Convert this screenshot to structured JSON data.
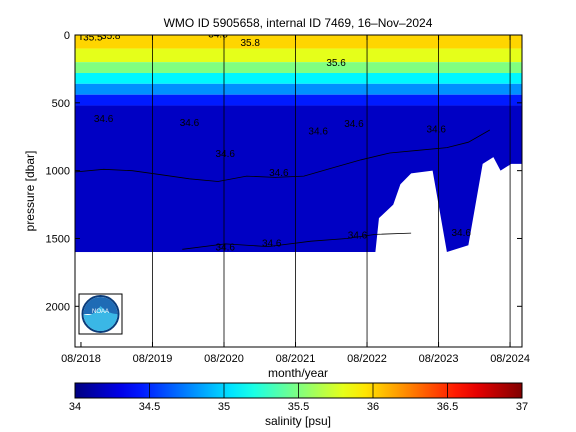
{
  "chart_data": {
    "type": "heatmap",
    "title": "WMO ID 5905658, internal ID 7469, 16–Nov–2024",
    "xlabel": "month/year",
    "ylabel": "pressure [dbar]",
    "x_ticks": [
      "08/2018",
      "08/2019",
      "08/2020",
      "08/2021",
      "08/2022",
      "08/2023",
      "08/2024"
    ],
    "x_range_years": [
      2018.5,
      2024.75
    ],
    "y_ticks": [
      0,
      500,
      1000,
      1500,
      2000
    ],
    "y_range": [
      0,
      2300
    ],
    "y_reversed": true,
    "colorbar": {
      "label": "salinity [psu]",
      "ticks": [
        34,
        34.5,
        35,
        35.5,
        36,
        36.5,
        37
      ],
      "range": [
        34,
        37
      ],
      "colormap": "jet"
    },
    "layers": [
      {
        "pmin": 0,
        "pmax": 100,
        "salinity": 36.0
      },
      {
        "pmin": 100,
        "pmax": 200,
        "salinity": 35.8
      },
      {
        "pmin": 200,
        "pmax": 280,
        "salinity": 35.5
      },
      {
        "pmin": 280,
        "pmax": 360,
        "salinity": 35.1
      },
      {
        "pmin": 360,
        "pmax": 440,
        "salinity": 34.8
      },
      {
        "pmin": 440,
        "pmax": 520,
        "salinity": 34.45
      },
      {
        "pmin": 520,
        "pmax": 1600,
        "salinity": 34.2
      }
    ],
    "profile_bottom": [
      {
        "year": 2018.5,
        "pressure": 1660
      },
      {
        "year": 2018.95,
        "pressure": 1620
      },
      {
        "year": 2019.0,
        "pressure": 1600
      },
      {
        "year": 2022.7,
        "pressure": 1600
      },
      {
        "year": 2022.75,
        "pressure": 1350
      },
      {
        "year": 2022.95,
        "pressure": 1250
      },
      {
        "year": 2023.05,
        "pressure": 1100
      },
      {
        "year": 2023.2,
        "pressure": 1020
      },
      {
        "year": 2023.5,
        "pressure": 1000
      },
      {
        "year": 2023.7,
        "pressure": 1600
      },
      {
        "year": 2024.0,
        "pressure": 1550
      },
      {
        "year": 2024.2,
        "pressure": 950
      },
      {
        "year": 2024.35,
        "pressure": 900
      },
      {
        "year": 2024.45,
        "pressure": 1000
      },
      {
        "year": 2024.6,
        "pressure": 950
      }
    ],
    "contours": [
      {
        "level": 34.6,
        "points": [
          [
            2018.5,
            1010
          ],
          [
            2018.9,
            990
          ],
          [
            2019.3,
            1000
          ],
          [
            2019.7,
            1030
          ],
          [
            2020.1,
            1060
          ],
          [
            2020.5,
            1080
          ],
          [
            2020.9,
            1040
          ],
          [
            2021.3,
            1050
          ],
          [
            2021.7,
            1040
          ],
          [
            2022.1,
            980
          ],
          [
            2022.5,
            920
          ],
          [
            2022.9,
            870
          ],
          [
            2023.3,
            850
          ],
          [
            2023.7,
            830
          ],
          [
            2024.0,
            790
          ],
          [
            2024.3,
            700
          ]
        ]
      },
      {
        "level": 34.6,
        "points": [
          [
            2020.0,
            1580
          ],
          [
            2020.6,
            1540
          ],
          [
            2021.2,
            1560
          ],
          [
            2021.8,
            1520
          ],
          [
            2022.3,
            1500
          ],
          [
            2022.7,
            1470
          ],
          [
            2023.2,
            1460
          ]
        ]
      }
    ],
    "annotations": [
      {
        "text": "35.5",
        "year": 2018.75,
        "pressure": 40
      },
      {
        "text": "35.8",
        "year": 2019.0,
        "pressure": 30
      },
      {
        "text": "34.8",
        "year": 2020.5,
        "pressure": 20
      },
      {
        "text": "35.8",
        "year": 2020.95,
        "pressure": 80
      },
      {
        "text": "35.6",
        "year": 2022.15,
        "pressure": 230
      },
      {
        "text": "34.6",
        "year": 2018.9,
        "pressure": 640
      },
      {
        "text": "34.6",
        "year": 2020.1,
        "pressure": 670
      },
      {
        "text": "34.6",
        "year": 2020.6,
        "pressure": 900
      },
      {
        "text": "34.6",
        "year": 2021.35,
        "pressure": 1040
      },
      {
        "text": "34.6",
        "year": 2021.9,
        "pressure": 735
      },
      {
        "text": "34.6",
        "year": 2022.4,
        "pressure": 680
      },
      {
        "text": "34.6",
        "year": 2023.55,
        "pressure": 720
      },
      {
        "text": "34.6",
        "year": 2023.9,
        "pressure": 1480
      },
      {
        "text": "34.6",
        "year": 2020.6,
        "pressure": 1590
      },
      {
        "text": "34.6",
        "year": 2021.25,
        "pressure": 1560
      },
      {
        "text": "34.6",
        "year": 2022.45,
        "pressure": 1500
      }
    ],
    "logo_text": "NOAA"
  },
  "colors": {
    "background": "#ffffff",
    "axes": "#000000",
    "contour": "#000000",
    "logo_blue": "#1f6bb5",
    "logo_light": "#3ab7e6",
    "logo_ring": "#0b3c7a"
  }
}
